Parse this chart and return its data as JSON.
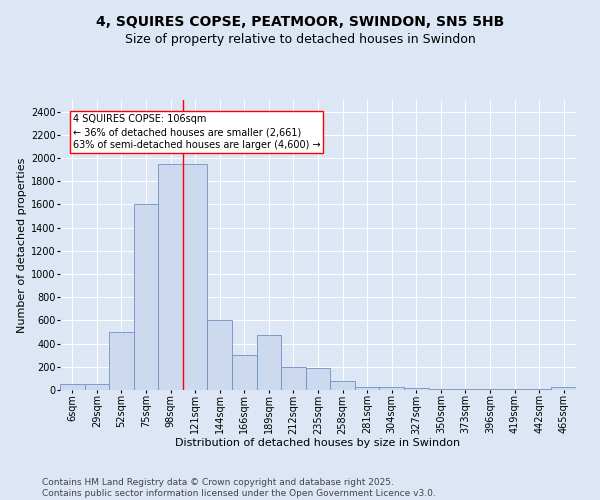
{
  "title1": "4, SQUIRES COPSE, PEATMOOR, SWINDON, SN5 5HB",
  "title2": "Size of property relative to detached houses in Swindon",
  "xlabel": "Distribution of detached houses by size in Swindon",
  "ylabel": "Number of detached properties",
  "categories": [
    "6sqm",
    "29sqm",
    "52sqm",
    "75sqm",
    "98sqm",
    "121sqm",
    "144sqm",
    "166sqm",
    "189sqm",
    "212sqm",
    "235sqm",
    "258sqm",
    "281sqm",
    "304sqm",
    "327sqm",
    "350sqm",
    "373sqm",
    "396sqm",
    "419sqm",
    "442sqm",
    "465sqm"
  ],
  "values": [
    50,
    50,
    500,
    1600,
    1950,
    1950,
    600,
    300,
    470,
    200,
    190,
    75,
    30,
    30,
    15,
    10,
    5,
    5,
    5,
    5,
    30
  ],
  "bar_color": "#cdd9ee",
  "bar_edge_color": "#7090c0",
  "redline_index": 4,
  "annotation_title": "4 SQUIRES COPSE: 106sqm",
  "annotation_line1": "← 36% of detached houses are smaller (2,661)",
  "annotation_line2": "63% of semi-detached houses are larger (4,600) →",
  "ylim_max": 2500,
  "yticks": [
    0,
    200,
    400,
    600,
    800,
    1000,
    1200,
    1400,
    1600,
    1800,
    2000,
    2200,
    2400
  ],
  "bg_color": "#dce6f5",
  "grid_color": "#ffffff",
  "footer1": "Contains HM Land Registry data © Crown copyright and database right 2025.",
  "footer2": "Contains public sector information licensed under the Open Government Licence v3.0.",
  "title_fontsize": 10,
  "subtitle_fontsize": 9,
  "axis_label_fontsize": 8,
  "tick_fontsize": 7,
  "annotation_fontsize": 7,
  "footer_fontsize": 6.5
}
